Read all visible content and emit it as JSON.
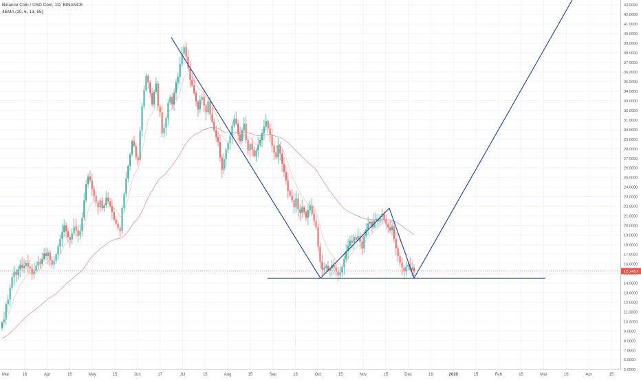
{
  "chart_data": {
    "type": "candlestick",
    "title": "Binance Coin / USD Coin, 1D, BINANCE",
    "indicator_label": "4EMA (10, 6, 13, 55)",
    "last_price_label": "15.2457",
    "colors": {
      "up": "#26a69a",
      "down": "#ef5350",
      "fast_ema": "#f2b8a6",
      "slow_ema": "#d58e8e",
      "pattern_line": "#2e4b8f",
      "last_price_bg": "#ef5350",
      "grid": "#f0f3fa",
      "axis_text": "#555555"
    },
    "y_axis": {
      "ylim": [
        5.0,
        43.5
      ],
      "tick_labels": [
        "5.0000",
        "6.0000",
        "7.0000",
        "8.0000",
        "9.0000",
        "10.0000",
        "11.0000",
        "12.0000",
        "13.0000",
        "14.0000",
        "15.0000",
        "16.0000",
        "17.0000",
        "18.0000",
        "19.0000",
        "20.0000",
        "21.0000",
        "22.0000",
        "23.0000",
        "24.0000",
        "25.0000",
        "26.0000",
        "27.0000",
        "28.0000",
        "29.0000",
        "30.0000",
        "31.0000",
        "32.0000",
        "33.0000",
        "34.0000",
        "35.0000",
        "36.0000",
        "37.0000",
        "38.0000",
        "39.0000",
        "40.0000",
        "41.0000",
        "42.0000",
        "43.0000"
      ]
    },
    "x_axis": {
      "tick_labels": [
        "Mar",
        "18",
        "Apr",
        "15",
        "May",
        "15",
        "Jun",
        "17",
        "Jul",
        "15",
        "Aug",
        "15",
        "Sep",
        "16",
        "Oct",
        "15",
        "Nov",
        "15",
        "Dec",
        "16",
        "2020",
        "15",
        "Feb",
        "15",
        "Mar",
        "16",
        "Apr",
        "15"
      ]
    },
    "candles": {
      "start_value": 9.9,
      "closes": [
        9.9,
        10.2,
        11.8,
        12.3,
        13.5,
        14.6,
        15.2,
        14.8,
        15.4,
        15.9,
        15.6,
        15.8,
        16.1,
        15.7,
        15.5,
        14.9,
        15.3,
        15.8,
        16.2,
        16.0,
        16.5,
        17.1,
        16.8,
        17.2,
        16.4,
        15.9,
        16.3,
        17.0,
        17.8,
        18.6,
        19.3,
        20.0,
        19.4,
        18.8,
        18.5,
        19.2,
        19.9,
        19.5,
        18.9,
        19.4,
        20.8,
        22.6,
        24.3,
        25.1,
        24.7,
        23.8,
        23.1,
        22.4,
        21.9,
        22.6,
        21.8,
        22.1,
        22.9,
        22.5,
        22.0,
        21.4,
        20.6,
        20.2,
        19.7,
        19.4,
        21.8,
        23.3,
        24.9,
        26.2,
        27.4,
        28.8,
        28.3,
        27.1,
        26.8,
        29.9,
        32.4,
        34.1,
        35.6,
        34.9,
        33.8,
        32.6,
        33.9,
        34.8,
        32.4,
        31.8,
        29.6,
        30.2,
        31.2,
        32.8,
        33.4,
        32.6,
        33.8,
        34.9,
        35.5,
        36.8,
        37.9,
        38.6,
        37.6,
        36.4,
        35.2,
        34.6,
        33.8,
        32.9,
        32.1,
        33.1,
        33.4,
        32.5,
        31.8,
        32.9,
        31.6,
        30.8,
        29.9,
        29.2,
        28.7,
        27.1,
        25.8,
        26.9,
        27.9,
        28.6,
        29.3,
        30.4,
        31.1,
        30.6,
        29.5,
        28.8,
        29.9,
        30.6,
        28.9,
        27.8,
        28.5,
        27.9,
        27.2,
        27.8,
        28.4,
        28.9,
        29.6,
        30.3,
        30.9,
        30.1,
        29.4,
        28.3,
        27.6,
        27.1,
        28.4,
        27.5,
        26.4,
        25.6,
        24.7,
        23.6,
        23.1,
        22.6,
        21.9,
        22.8,
        21.7,
        21.3,
        21.9,
        21.4,
        20.8,
        21.6,
        22.1,
        21.2,
        20.5,
        19.8,
        17.8,
        16.2,
        15.4,
        15.6,
        15.8,
        15.3,
        15.5,
        15.9,
        15.6,
        15.2,
        14.8,
        15.1,
        15.7,
        16.5,
        17.3,
        17.9,
        18.4,
        18.2,
        18.8,
        18.5,
        18.9,
        18.3,
        17.6,
        18.9,
        19.6,
        20.2,
        20.4,
        19.8,
        20.5,
        20.7,
        20.4,
        20.9,
        21.2,
        20.6,
        20.1,
        19.8,
        19.5,
        19.9,
        18.6,
        17.6,
        16.8,
        16.1,
        15.6,
        15.2,
        15.7,
        15.9,
        15.4,
        15.6,
        15.2
      ],
      "count_note": ""
    },
    "series": [
      {
        "name": "",
        "role": "fast_ema"
      },
      {
        "name": "",
        "role": "slow_ema"
      }
    ],
    "pattern": {
      "zigzag_points": [
        [
          0.0,
          39.6
        ],
        [
          1.0,
          14.5
        ],
        [
          2.0,
          21.8
        ],
        [
          3.0,
          14.5
        ],
        [
          4.0,
          43.5
        ]
      ],
      "neckline_value": 14.5
    },
    "grid": true
  }
}
